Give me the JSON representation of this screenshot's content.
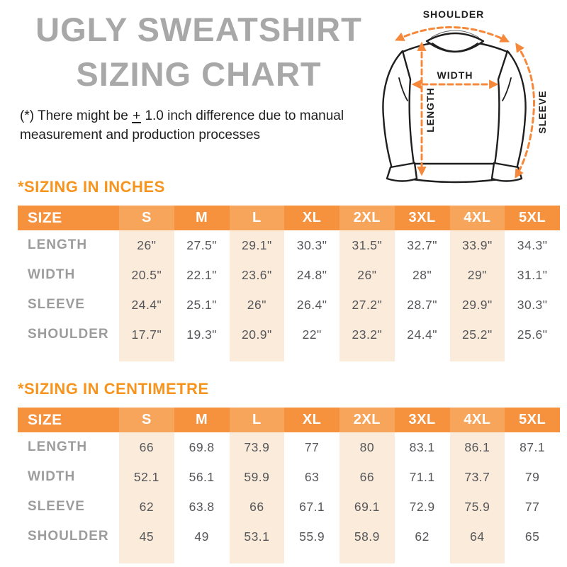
{
  "header": {
    "title_line1": "UGLY SWEATSHIRT",
    "title_line2": "SIZING CHART",
    "note_part1": "(*) There might be ",
    "note_plus": "+",
    "note_part2": " 1.0 inch difference due to manual measurement and production processes"
  },
  "diagram": {
    "labels": {
      "shoulder": "SHOULDER",
      "width": "WIDTH",
      "length": "LENGTH",
      "sleeve": "SLEEVE"
    }
  },
  "colors": {
    "accent_orange": "#F7941E",
    "table_header_orange": "#F6913E",
    "table_header_orange_light": "#F8A55C",
    "highlight_peach": "#FBEBDB",
    "arrow_orange": "#F5883A",
    "title_gray": "#A8A8A8",
    "row_label_gray": "#9C9C9C",
    "value_gray": "#55565A"
  },
  "chart_data": [
    {
      "type": "table",
      "title": "*SIZING IN INCHES",
      "unit": "inches",
      "columns": [
        "SIZE",
        "S",
        "M",
        "L",
        "XL",
        "2XL",
        "3XL",
        "4XL",
        "5XL"
      ],
      "highlight_columns": [
        1,
        3,
        5,
        7
      ],
      "rows": [
        {
          "label": "LENGTH",
          "values": [
            "26\"",
            "27.5\"",
            "29.1\"",
            "30.3\"",
            "31.5\"",
            "32.7\"",
            "33.9\"",
            "34.3\""
          ]
        },
        {
          "label": "WIDTH",
          "values": [
            "20.5\"",
            "22.1\"",
            "23.6\"",
            "24.8\"",
            "26\"",
            "28\"",
            "29\"",
            "31.1\""
          ]
        },
        {
          "label": "SLEEVE",
          "values": [
            "24.4\"",
            "25.1\"",
            "26\"",
            "26.4\"",
            "27.2\"",
            "28.7\"",
            "29.9\"",
            "30.3\""
          ]
        },
        {
          "label": "SHOULDER",
          "values": [
            "17.7\"",
            "19.3\"",
            "20.9\"",
            "22\"",
            "23.2\"",
            "24.4\"",
            "25.2\"",
            "25.6\""
          ]
        }
      ]
    },
    {
      "type": "table",
      "title": "*SIZING IN CENTIMETRE",
      "unit": "centimetre",
      "columns": [
        "SIZE",
        "S",
        "M",
        "L",
        "XL",
        "2XL",
        "3XL",
        "4XL",
        "5XL"
      ],
      "highlight_columns": [
        1,
        3,
        5,
        7
      ],
      "rows": [
        {
          "label": "LENGTH",
          "values": [
            "66",
            "69.8",
            "73.9",
            "77",
            "80",
            "83.1",
            "86.1",
            "87.1"
          ]
        },
        {
          "label": "WIDTH",
          "values": [
            "52.1",
            "56.1",
            "59.9",
            "63",
            "66",
            "71.1",
            "73.7",
            "79"
          ]
        },
        {
          "label": "SLEEVE",
          "values": [
            "62",
            "63.8",
            "66",
            "67.1",
            "69.1",
            "72.9",
            "75.9",
            "77"
          ]
        },
        {
          "label": "SHOULDER",
          "values": [
            "45",
            "49",
            "53.1",
            "55.9",
            "58.9",
            "62",
            "64",
            "65"
          ]
        }
      ]
    }
  ]
}
